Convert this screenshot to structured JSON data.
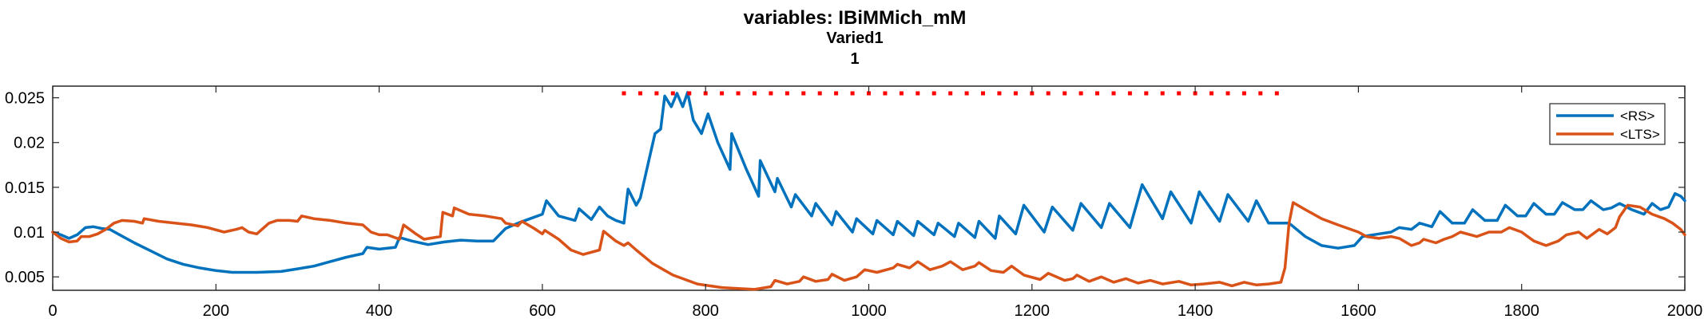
{
  "chart_data": {
    "type": "line",
    "title": "variables: IBiMMich_mM",
    "subtitle": "Varied1",
    "subtitle2": "1",
    "xlabel": "",
    "ylabel": "",
    "xlim": [
      0,
      2000
    ],
    "ylim": [
      0.0035,
      0.0263
    ],
    "x_ticks": [
      0,
      200,
      400,
      600,
      800,
      1000,
      1200,
      1400,
      1600,
      1800,
      2000
    ],
    "x_tick_labels": [
      "0",
      "200",
      "400",
      "600",
      "800",
      "1000",
      "1200",
      "1400",
      "1600",
      "1800",
      "2000"
    ],
    "y_ticks": [
      0.005,
      0.01,
      0.015,
      0.02,
      0.025
    ],
    "y_tick_labels": [
      "0.005",
      "0.01",
      "0.015",
      "0.02",
      "0.025"
    ],
    "grid": false,
    "legend_position": "top-right",
    "stimulus_marker": {
      "x_start": 700,
      "x_end": 1500,
      "y": 0.0255,
      "color": "#ff0000"
    },
    "series": [
      {
        "name": "<RS>",
        "color": "#0072bd",
        "points": [
          [
            0,
            0.01
          ],
          [
            10,
            0.0097
          ],
          [
            20,
            0.0093
          ],
          [
            30,
            0.0097
          ],
          [
            40,
            0.0105
          ],
          [
            50,
            0.0106
          ],
          [
            60,
            0.0104
          ],
          [
            70,
            0.0103
          ],
          [
            80,
            0.0098
          ],
          [
            100,
            0.0088
          ],
          [
            120,
            0.0079
          ],
          [
            140,
            0.007
          ],
          [
            160,
            0.0064
          ],
          [
            180,
            0.006
          ],
          [
            200,
            0.0057
          ],
          [
            220,
            0.0055
          ],
          [
            250,
            0.0055
          ],
          [
            280,
            0.0056
          ],
          [
            300,
            0.0059
          ],
          [
            320,
            0.0062
          ],
          [
            340,
            0.0067
          ],
          [
            360,
            0.0072
          ],
          [
            380,
            0.0076
          ],
          [
            385,
            0.0083
          ],
          [
            400,
            0.0081
          ],
          [
            420,
            0.0083
          ],
          [
            425,
            0.0094
          ],
          [
            440,
            0.009
          ],
          [
            460,
            0.0086
          ],
          [
            480,
            0.0089
          ],
          [
            500,
            0.0091
          ],
          [
            520,
            0.009
          ],
          [
            540,
            0.009
          ],
          [
            555,
            0.0104
          ],
          [
            570,
            0.011
          ],
          [
            585,
            0.0115
          ],
          [
            600,
            0.012
          ],
          [
            605,
            0.0135
          ],
          [
            620,
            0.0118
          ],
          [
            640,
            0.0113
          ],
          [
            645,
            0.0126
          ],
          [
            660,
            0.0114
          ],
          [
            670,
            0.0128
          ],
          [
            680,
            0.0118
          ],
          [
            690,
            0.0113
          ],
          [
            700,
            0.011
          ],
          [
            705,
            0.0148
          ],
          [
            715,
            0.013
          ],
          [
            720,
            0.0138
          ],
          [
            730,
            0.0178
          ],
          [
            738,
            0.021
          ],
          [
            745,
            0.0215
          ],
          [
            750,
            0.0252
          ],
          [
            758,
            0.024
          ],
          [
            765,
            0.0255
          ],
          [
            772,
            0.024
          ],
          [
            778,
            0.0256
          ],
          [
            785,
            0.0225
          ],
          [
            795,
            0.021
          ],
          [
            803,
            0.0232
          ],
          [
            815,
            0.02
          ],
          [
            830,
            0.017
          ],
          [
            832,
            0.021
          ],
          [
            850,
            0.017
          ],
          [
            865,
            0.014
          ],
          [
            867,
            0.018
          ],
          [
            885,
            0.0145
          ],
          [
            888,
            0.016
          ],
          [
            905,
            0.0128
          ],
          [
            910,
            0.0142
          ],
          [
            930,
            0.0118
          ],
          [
            935,
            0.0132
          ],
          [
            955,
            0.0108
          ],
          [
            960,
            0.0123
          ],
          [
            980,
            0.01
          ],
          [
            985,
            0.0115
          ],
          [
            1005,
            0.0098
          ],
          [
            1010,
            0.0113
          ],
          [
            1030,
            0.0097
          ],
          [
            1035,
            0.0112
          ],
          [
            1055,
            0.0096
          ],
          [
            1060,
            0.0112
          ],
          [
            1080,
            0.0097
          ],
          [
            1085,
            0.011
          ],
          [
            1105,
            0.0095
          ],
          [
            1110,
            0.011
          ],
          [
            1130,
            0.0094
          ],
          [
            1135,
            0.0112
          ],
          [
            1155,
            0.0093
          ],
          [
            1160,
            0.0118
          ],
          [
            1180,
            0.0098
          ],
          [
            1190,
            0.013
          ],
          [
            1215,
            0.01
          ],
          [
            1225,
            0.0128
          ],
          [
            1250,
            0.0102
          ],
          [
            1260,
            0.0132
          ],
          [
            1285,
            0.0105
          ],
          [
            1295,
            0.0132
          ],
          [
            1320,
            0.0105
          ],
          [
            1335,
            0.0153
          ],
          [
            1360,
            0.0115
          ],
          [
            1370,
            0.0145
          ],
          [
            1395,
            0.011
          ],
          [
            1405,
            0.0145
          ],
          [
            1430,
            0.0112
          ],
          [
            1440,
            0.0142
          ],
          [
            1465,
            0.0112
          ],
          [
            1475,
            0.0135
          ],
          [
            1490,
            0.011
          ],
          [
            1515,
            0.011
          ],
          [
            1535,
            0.0095
          ],
          [
            1555,
            0.0085
          ],
          [
            1575,
            0.0082
          ],
          [
            1595,
            0.0085
          ],
          [
            1605,
            0.0095
          ],
          [
            1625,
            0.0098
          ],
          [
            1640,
            0.01
          ],
          [
            1650,
            0.0105
          ],
          [
            1665,
            0.0103
          ],
          [
            1675,
            0.011
          ],
          [
            1690,
            0.0106
          ],
          [
            1700,
            0.0123
          ],
          [
            1715,
            0.011
          ],
          [
            1730,
            0.011
          ],
          [
            1740,
            0.0125
          ],
          [
            1755,
            0.0113
          ],
          [
            1770,
            0.0113
          ],
          [
            1780,
            0.013
          ],
          [
            1795,
            0.0118
          ],
          [
            1805,
            0.0118
          ],
          [
            1815,
            0.0132
          ],
          [
            1830,
            0.012
          ],
          [
            1840,
            0.012
          ],
          [
            1850,
            0.0133
          ],
          [
            1865,
            0.0125
          ],
          [
            1875,
            0.0125
          ],
          [
            1885,
            0.0135
          ],
          [
            1900,
            0.0125
          ],
          [
            1910,
            0.0127
          ],
          [
            1920,
            0.0132
          ],
          [
            1935,
            0.0125
          ],
          [
            1950,
            0.012
          ],
          [
            1960,
            0.0132
          ],
          [
            1970,
            0.0125
          ],
          [
            1980,
            0.0128
          ],
          [
            1988,
            0.0143
          ],
          [
            1995,
            0.014
          ],
          [
            2000,
            0.0135
          ]
        ]
      },
      {
        "name": "<LTS>",
        "color": "#d95319",
        "points": [
          [
            0,
            0.01
          ],
          [
            10,
            0.0093
          ],
          [
            20,
            0.0089
          ],
          [
            30,
            0.009
          ],
          [
            35,
            0.0095
          ],
          [
            45,
            0.0095
          ],
          [
            55,
            0.0098
          ],
          [
            65,
            0.0103
          ],
          [
            75,
            0.011
          ],
          [
            85,
            0.0113
          ],
          [
            100,
            0.0112
          ],
          [
            110,
            0.011
          ],
          [
            112,
            0.0115
          ],
          [
            130,
            0.0112
          ],
          [
            150,
            0.011
          ],
          [
            170,
            0.0108
          ],
          [
            190,
            0.0105
          ],
          [
            210,
            0.01
          ],
          [
            225,
            0.0103
          ],
          [
            232,
            0.0105
          ],
          [
            240,
            0.01
          ],
          [
            250,
            0.0098
          ],
          [
            255,
            0.0102
          ],
          [
            265,
            0.011
          ],
          [
            275,
            0.0113
          ],
          [
            290,
            0.0113
          ],
          [
            300,
            0.0112
          ],
          [
            305,
            0.0118
          ],
          [
            320,
            0.0115
          ],
          [
            340,
            0.0113
          ],
          [
            360,
            0.011
          ],
          [
            380,
            0.0108
          ],
          [
            390,
            0.01
          ],
          [
            400,
            0.0097
          ],
          [
            410,
            0.0097
          ],
          [
            425,
            0.0092
          ],
          [
            430,
            0.0108
          ],
          [
            445,
            0.0098
          ],
          [
            455,
            0.0092
          ],
          [
            475,
            0.0095
          ],
          [
            478,
            0.0122
          ],
          [
            490,
            0.0118
          ],
          [
            492,
            0.0127
          ],
          [
            510,
            0.012
          ],
          [
            530,
            0.0118
          ],
          [
            550,
            0.0115
          ],
          [
            555,
            0.011
          ],
          [
            570,
            0.0107
          ],
          [
            575,
            0.0112
          ],
          [
            590,
            0.0104
          ],
          [
            600,
            0.0098
          ],
          [
            603,
            0.0102
          ],
          [
            620,
            0.0092
          ],
          [
            635,
            0.008
          ],
          [
            650,
            0.0075
          ],
          [
            670,
            0.008
          ],
          [
            675,
            0.0101
          ],
          [
            690,
            0.009
          ],
          [
            700,
            0.0085
          ],
          [
            705,
            0.0088
          ],
          [
            715,
            0.008
          ],
          [
            735,
            0.0065
          ],
          [
            760,
            0.0052
          ],
          [
            790,
            0.0042
          ],
          [
            820,
            0.0038
          ],
          [
            860,
            0.0036
          ],
          [
            880,
            0.0039
          ],
          [
            885,
            0.0046
          ],
          [
            900,
            0.0042
          ],
          [
            915,
            0.0045
          ],
          [
            920,
            0.005
          ],
          [
            935,
            0.0045
          ],
          [
            950,
            0.0047
          ],
          [
            955,
            0.0053
          ],
          [
            970,
            0.0046
          ],
          [
            985,
            0.005
          ],
          [
            995,
            0.0058
          ],
          [
            1010,
            0.0055
          ],
          [
            1030,
            0.006
          ],
          [
            1035,
            0.0064
          ],
          [
            1050,
            0.006
          ],
          [
            1060,
            0.0067
          ],
          [
            1075,
            0.0058
          ],
          [
            1090,
            0.0062
          ],
          [
            1100,
            0.0067
          ],
          [
            1115,
            0.0058
          ],
          [
            1130,
            0.0062
          ],
          [
            1135,
            0.0066
          ],
          [
            1150,
            0.0057
          ],
          [
            1165,
            0.0055
          ],
          [
            1175,
            0.0062
          ],
          [
            1190,
            0.0052
          ],
          [
            1210,
            0.0047
          ],
          [
            1220,
            0.0054
          ],
          [
            1240,
            0.0046
          ],
          [
            1250,
            0.0048
          ],
          [
            1255,
            0.0052
          ],
          [
            1270,
            0.0045
          ],
          [
            1285,
            0.005
          ],
          [
            1300,
            0.0044
          ],
          [
            1315,
            0.0048
          ],
          [
            1330,
            0.0043
          ],
          [
            1345,
            0.0046
          ],
          [
            1360,
            0.0042
          ],
          [
            1380,
            0.0045
          ],
          [
            1395,
            0.0041
          ],
          [
            1410,
            0.0042
          ],
          [
            1430,
            0.0044
          ],
          [
            1445,
            0.004
          ],
          [
            1460,
            0.0044
          ],
          [
            1475,
            0.0041
          ],
          [
            1490,
            0.0042
          ],
          [
            1505,
            0.0044
          ],
          [
            1510,
            0.006
          ],
          [
            1515,
            0.011
          ],
          [
            1520,
            0.0133
          ],
          [
            1535,
            0.0125
          ],
          [
            1555,
            0.0115
          ],
          [
            1575,
            0.0108
          ],
          [
            1600,
            0.01
          ],
          [
            1610,
            0.0095
          ],
          [
            1625,
            0.0093
          ],
          [
            1640,
            0.0095
          ],
          [
            1650,
            0.0093
          ],
          [
            1665,
            0.0085
          ],
          [
            1675,
            0.0088
          ],
          [
            1680,
            0.0092
          ],
          [
            1695,
            0.0088
          ],
          [
            1705,
            0.0092
          ],
          [
            1715,
            0.0095
          ],
          [
            1725,
            0.01
          ],
          [
            1745,
            0.0095
          ],
          [
            1760,
            0.01
          ],
          [
            1775,
            0.01
          ],
          [
            1785,
            0.0105
          ],
          [
            1800,
            0.01
          ],
          [
            1815,
            0.009
          ],
          [
            1830,
            0.0085
          ],
          [
            1845,
            0.009
          ],
          [
            1855,
            0.0097
          ],
          [
            1870,
            0.01
          ],
          [
            1880,
            0.0093
          ],
          [
            1895,
            0.0103
          ],
          [
            1905,
            0.0098
          ],
          [
            1915,
            0.0105
          ],
          [
            1920,
            0.0117
          ],
          [
            1930,
            0.013
          ],
          [
            1945,
            0.0128
          ],
          [
            1960,
            0.012
          ],
          [
            1975,
            0.0115
          ],
          [
            1985,
            0.011
          ],
          [
            1995,
            0.0103
          ],
          [
            2000,
            0.0097
          ]
        ]
      }
    ]
  }
}
